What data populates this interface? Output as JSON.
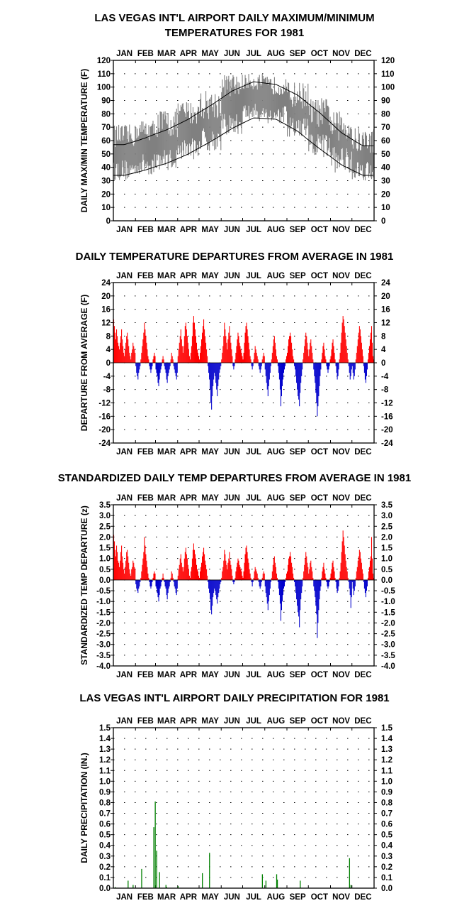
{
  "months": [
    "JAN",
    "FEB",
    "MAR",
    "APR",
    "MAY",
    "JUN",
    "JUL",
    "AUG",
    "SEP",
    "OCT",
    "NOV",
    "DEC"
  ],
  "colors": {
    "envelope": "#808080",
    "normal_line": "#000000",
    "positive": "#ff0000",
    "negative": "#0000cc",
    "precip": "#008000"
  },
  "chart_data": [
    {
      "type": "area",
      "title": [
        "LAS VEGAS INT'L AIRPORT DAILY MAXIMUM/MINIMUM",
        "TEMPERATURES FOR 1981"
      ],
      "ylabel": "DAILY MAX/MIN TEMPERATURE (F)",
      "ylim": [
        0,
        120
      ],
      "yticks": [
        0,
        10,
        20,
        30,
        40,
        50,
        60,
        70,
        80,
        90,
        100,
        110,
        120
      ],
      "grid": true,
      "monthly": [
        {
          "month": "JAN",
          "max_range": [
            55,
            72
          ],
          "min_range": [
            30,
            46
          ],
          "normal_max": 57,
          "normal_min": 34
        },
        {
          "month": "FEB",
          "max_range": [
            60,
            76
          ],
          "min_range": [
            34,
            50
          ],
          "normal_max": 62,
          "normal_min": 38
        },
        {
          "month": "MAR",
          "max_range": [
            62,
            84
          ],
          "min_range": [
            38,
            54
          ],
          "normal_max": 68,
          "normal_min": 43
        },
        {
          "month": "APR",
          "max_range": [
            72,
            90
          ],
          "min_range": [
            46,
            62
          ],
          "normal_max": 76,
          "normal_min": 50
        },
        {
          "month": "MAY",
          "max_range": [
            76,
            98
          ],
          "min_range": [
            52,
            70
          ],
          "normal_max": 86,
          "normal_min": 59
        },
        {
          "month": "JUN",
          "max_range": [
            92,
            110
          ],
          "min_range": [
            64,
            80
          ],
          "normal_max": 97,
          "normal_min": 69
        },
        {
          "month": "JUL",
          "max_range": [
            98,
            110
          ],
          "min_range": [
            74,
            88
          ],
          "normal_max": 104,
          "normal_min": 77
        },
        {
          "month": "AUG",
          "max_range": [
            94,
            108
          ],
          "min_range": [
            72,
            86
          ],
          "normal_max": 102,
          "normal_min": 76
        },
        {
          "month": "SEP",
          "max_range": [
            84,
            104
          ],
          "min_range": [
            60,
            78
          ],
          "normal_max": 94,
          "normal_min": 67
        },
        {
          "month": "OCT",
          "max_range": [
            70,
            92
          ],
          "min_range": [
            46,
            66
          ],
          "normal_max": 81,
          "normal_min": 54
        },
        {
          "month": "NOV",
          "max_range": [
            60,
            82
          ],
          "min_range": [
            36,
            56
          ],
          "normal_max": 66,
          "normal_min": 42
        },
        {
          "month": "DEC",
          "max_range": [
            50,
            70
          ],
          "min_range": [
            30,
            46
          ],
          "normal_max": 56,
          "normal_min": 34
        }
      ]
    },
    {
      "type": "bar",
      "title": [
        "DAILY TEMPERATURE DEPARTURES FROM AVERAGE IN 1981"
      ],
      "ylabel": "DEPARTURE FROM AVERAGE (F)",
      "ylim": [
        -24,
        24
      ],
      "yticks": [
        -24,
        -20,
        -16,
        -12,
        -8,
        -4,
        0,
        4,
        8,
        12,
        16,
        20,
        24
      ],
      "grid": true,
      "monthly_departures": {
        "JAN": [
          13,
          11,
          9,
          7,
          10,
          8,
          6,
          5,
          4,
          6,
          8,
          10,
          7,
          5,
          3,
          2,
          4,
          6,
          8,
          9,
          7,
          5,
          3,
          2,
          1,
          3,
          4,
          6,
          5,
          4,
          3
        ],
        "FEB": [
          -1,
          -3,
          -4,
          -5,
          -3,
          -2,
          -1,
          1,
          3,
          5,
          7,
          9,
          12,
          10,
          8,
          6,
          4,
          2,
          1,
          -1,
          -2,
          -3,
          -2,
          -1,
          1,
          2,
          3,
          2
        ],
        "MAR": [
          -2,
          -3,
          -4,
          -6,
          -7,
          -5,
          -3,
          -2,
          -1,
          1,
          2,
          1,
          -1,
          -2,
          -3,
          -5,
          -6,
          -4,
          -3,
          -2,
          -1,
          1,
          3,
          2,
          1,
          -1,
          -2,
          -3,
          -4,
          -5,
          -3
        ],
        "APR": [
          2,
          4,
          6,
          8,
          10,
          7,
          5,
          3,
          5,
          8,
          11,
          12,
          10,
          8,
          6,
          4,
          2,
          1,
          3,
          5,
          8,
          12,
          14,
          12,
          10,
          8,
          6,
          4,
          3,
          2
        ],
        "MAY": [
          1,
          3,
          5,
          7,
          9,
          11,
          13,
          10,
          8,
          6,
          4,
          2,
          -1,
          -3,
          -5,
          -8,
          -12,
          -14,
          -10,
          -7,
          -5,
          -3,
          -4,
          -6,
          -8,
          -10,
          -7,
          -5,
          -3,
          -2,
          -1
        ],
        "JUN": [
          1,
          3,
          5,
          8,
          12,
          10,
          8,
          6,
          4,
          7,
          9,
          11,
          8,
          6,
          4,
          2,
          -1,
          -2,
          -1,
          1,
          3,
          5,
          7,
          9,
          8,
          6,
          5,
          4,
          3,
          2
        ],
        "JUL": [
          1,
          3,
          6,
          9,
          11,
          12,
          10,
          8,
          6,
          4,
          2,
          1,
          -1,
          -2,
          -1,
          1,
          3,
          5,
          4,
          3,
          2,
          1,
          -1,
          -2,
          -3,
          -2,
          -1,
          1,
          2,
          3,
          2
        ],
        "AUG": [
          -2,
          -4,
          -6,
          -8,
          -10,
          -7,
          -5,
          -3,
          -1,
          1,
          3,
          5,
          7,
          8,
          6,
          4,
          2,
          1,
          -1,
          -3,
          -5,
          -8,
          -13,
          -10,
          -7,
          -5,
          -3,
          -2,
          -1,
          1,
          2
        ],
        "SEP": [
          3,
          5,
          7,
          8,
          9,
          8,
          6,
          4,
          2,
          1,
          -1,
          -2,
          -4,
          -6,
          -8,
          -10,
          -11,
          -13,
          -9,
          -6,
          -4,
          -2,
          1,
          3,
          5,
          7,
          9,
          8,
          6,
          4
        ],
        "OCT": [
          2,
          4,
          6,
          7,
          5,
          3,
          1,
          -2,
          -4,
          -6,
          -9,
          -12,
          -16,
          -13,
          -10,
          -7,
          -4,
          -2,
          1,
          3,
          5,
          6,
          4,
          2,
          1,
          -1,
          -2,
          -3,
          -2,
          -1,
          1
        ],
        "NOV": [
          2,
          4,
          6,
          7,
          5,
          3,
          1,
          -1,
          -3,
          -5,
          -4,
          -2,
          1,
          3,
          6,
          9,
          12,
          14,
          13,
          11,
          9,
          7,
          5,
          3,
          1,
          -1,
          -3,
          -5,
          -4,
          -2
        ],
        "DEC": [
          -1,
          -3,
          -5,
          -4,
          -2,
          1,
          3,
          5,
          7,
          9,
          11,
          10,
          8,
          6,
          4,
          2,
          -1,
          -3,
          -5,
          -6,
          -4,
          -2,
          1,
          3,
          5,
          7,
          9,
          11,
          6,
          2,
          1
        ]
      }
    },
    {
      "type": "bar",
      "title": [
        "STANDARDIZED DAILY TEMP DEPARTURES FROM AVERAGE IN 1981"
      ],
      "ylabel": "STANDARDIZED TEMP DEPARTURE (z)",
      "ylim": [
        -4.0,
        3.5
      ],
      "yticks": [
        "-4.0",
        "-3.5",
        "-3.0",
        "-2.5",
        "-2.0",
        "-1.5",
        "-1.0",
        "-0.5",
        "0.0",
        "0.5",
        "1.0",
        "1.5",
        "2.0",
        "2.5",
        "3.0",
        "3.5"
      ],
      "grid": true,
      "monthly_departures": {
        "JAN": [
          2.1,
          1.8,
          1.4,
          1.1,
          1.6,
          1.3,
          0.9,
          0.8,
          0.6,
          0.9,
          1.3,
          1.6,
          1.1,
          0.8,
          0.5,
          0.3,
          0.6,
          0.9,
          1.3,
          1.4,
          1.1,
          0.8,
          0.5,
          0.3,
          0.2,
          0.5,
          0.6,
          0.9,
          0.8,
          0.6,
          0.5
        ],
        "FEB": [
          -0.2,
          -0.4,
          -0.5,
          -0.6,
          -0.4,
          -0.3,
          -0.1,
          0.1,
          0.4,
          0.7,
          1.0,
          1.3,
          2.0,
          1.6,
          1.2,
          0.9,
          0.6,
          0.3,
          0.1,
          -0.1,
          -0.3,
          -0.4,
          -0.3,
          -0.1,
          0.1,
          0.3,
          0.4,
          0.3
        ],
        "MAR": [
          -0.3,
          -0.4,
          -0.6,
          -0.8,
          -1.0,
          -0.7,
          -0.4,
          -0.3,
          -0.1,
          0.1,
          0.3,
          0.1,
          -0.1,
          -0.3,
          -0.4,
          -0.7,
          -0.9,
          -0.6,
          -0.4,
          -0.3,
          -0.1,
          0.1,
          0.4,
          0.3,
          0.1,
          -0.1,
          -0.3,
          -0.4,
          -0.6,
          -0.7,
          -0.4
        ],
        "APR": [
          0.2,
          0.5,
          0.7,
          1.0,
          1.2,
          0.8,
          0.6,
          0.4,
          0.6,
          1.0,
          1.3,
          1.5,
          1.2,
          1.0,
          0.7,
          0.5,
          0.2,
          0.1,
          0.4,
          0.6,
          1.0,
          1.4,
          1.7,
          1.4,
          1.2,
          1.0,
          0.7,
          0.5,
          0.4,
          0.2
        ],
        "MAY": [
          0.1,
          0.4,
          0.6,
          0.8,
          1.1,
          1.3,
          1.5,
          1.2,
          0.9,
          0.7,
          0.5,
          0.2,
          -0.1,
          -0.4,
          -0.6,
          -0.9,
          -1.4,
          -1.6,
          -1.2,
          -0.8,
          -0.6,
          -0.4,
          -0.5,
          -0.7,
          -0.9,
          -1.1,
          -0.8,
          -0.6,
          -0.4,
          -0.2,
          -0.1
        ],
        "JUN": [
          0.1,
          0.4,
          0.6,
          0.9,
          1.4,
          1.2,
          0.9,
          0.7,
          0.5,
          0.8,
          1.0,
          1.3,
          0.9,
          0.7,
          0.5,
          0.2,
          -0.1,
          -0.2,
          -0.1,
          0.1,
          0.4,
          0.6,
          0.8,
          1.0,
          0.9,
          0.7,
          0.6,
          0.5,
          0.4,
          0.2
        ],
        "JUL": [
          0.1,
          0.4,
          0.8,
          1.2,
          1.5,
          1.6,
          1.3,
          1.0,
          0.8,
          0.5,
          0.3,
          0.1,
          -0.1,
          -0.3,
          -0.1,
          0.1,
          0.4,
          0.6,
          0.5,
          0.4,
          0.3,
          0.1,
          -0.1,
          -0.3,
          -0.4,
          -0.3,
          -0.1,
          0.1,
          0.3,
          0.4,
          0.3
        ],
        "AUG": [
          -0.3,
          -0.6,
          -0.8,
          -1.1,
          -1.4,
          -1.0,
          -0.7,
          -0.4,
          -0.1,
          0.1,
          0.4,
          0.7,
          1.0,
          1.1,
          0.8,
          0.6,
          0.3,
          0.1,
          -0.1,
          -0.4,
          -0.7,
          -1.1,
          -1.9,
          -1.4,
          -1.0,
          -0.7,
          -0.4,
          -0.3,
          -0.1,
          0.1,
          0.3
        ],
        "SEP": [
          0.4,
          0.7,
          1.0,
          1.1,
          1.3,
          1.1,
          0.8,
          0.6,
          0.3,
          0.1,
          -0.1,
          -0.3,
          -0.6,
          -0.9,
          -1.2,
          -1.5,
          -1.7,
          -2.2,
          -1.4,
          -0.9,
          -0.6,
          -0.3,
          0.1,
          0.4,
          0.7,
          1.0,
          1.3,
          1.1,
          0.8,
          0.6
        ],
        "OCT": [
          0.3,
          0.5,
          0.8,
          0.9,
          0.6,
          0.4,
          0.1,
          -0.3,
          -0.5,
          -0.8,
          -1.2,
          -1.6,
          -2.7,
          -2.0,
          -1.4,
          -0.9,
          -0.5,
          -0.3,
          0.1,
          0.4,
          0.6,
          0.8,
          0.5,
          0.3,
          0.1,
          -0.1,
          -0.3,
          -0.4,
          -0.3,
          -0.1,
          0.1
        ],
        "NOV": [
          0.3,
          0.5,
          0.8,
          0.9,
          0.6,
          0.4,
          0.1,
          -0.1,
          -0.4,
          -0.6,
          -0.5,
          -0.3,
          0.1,
          0.4,
          0.8,
          1.3,
          1.8,
          2.3,
          2.0,
          1.6,
          1.2,
          0.9,
          0.6,
          0.4,
          0.1,
          -0.1,
          -0.4,
          -0.7,
          -1.3,
          -0.8
        ],
        "DEC": [
          -0.1,
          -0.4,
          -0.7,
          -0.5,
          -0.3,
          0.1,
          0.4,
          0.6,
          0.9,
          1.1,
          1.4,
          1.3,
          1.0,
          0.8,
          0.5,
          0.3,
          -0.1,
          -0.4,
          -0.6,
          -0.8,
          -0.5,
          -0.3,
          0.1,
          0.4,
          0.6,
          0.9,
          1.1,
          2.0,
          1.0,
          0.3,
          0.1
        ]
      }
    },
    {
      "type": "bar",
      "title": [
        "LAS VEGAS INT'L AIRPORT DAILY PRECIPITATION FOR 1981"
      ],
      "ylabel": "DAILY PRECIPITATION (IN.)",
      "ylim": [
        0.0,
        1.5
      ],
      "yticks": [
        "0.0",
        "0.1",
        "0.2",
        "0.3",
        "0.4",
        "0.5",
        "0.6",
        "0.7",
        "0.8",
        "0.9",
        "1.0",
        "1.1",
        "1.2",
        "1.3",
        "1.4",
        "1.5"
      ],
      "grid": true,
      "events": [
        {
          "date": "JAN 3",
          "value": 0.01
        },
        {
          "date": "JAN 21",
          "value": 0.07
        },
        {
          "date": "JAN 28",
          "value": 0.03
        },
        {
          "date": "FEB 9",
          "value": 0.18
        },
        {
          "date": "FEB 26",
          "value": 0.57
        },
        {
          "date": "FEB 28",
          "value": 0.81
        },
        {
          "date": "MAR 2",
          "value": 0.35
        },
        {
          "date": "MAR 6",
          "value": 0.15
        },
        {
          "date": "MAR 15",
          "value": 0.03
        },
        {
          "date": "MAR 16",
          "value": 0.01
        },
        {
          "date": "APR 1",
          "value": 0.02
        },
        {
          "date": "MAY 5",
          "value": 0.14
        },
        {
          "date": "MAY 15",
          "value": 0.33
        },
        {
          "date": "JUL 28",
          "value": 0.13
        },
        {
          "date": "AUG 2",
          "value": 0.07
        },
        {
          "date": "AUG 17",
          "value": 0.13
        },
        {
          "date": "AUG 18",
          "value": 0.08
        },
        {
          "date": "SEP 19",
          "value": 0.07
        },
        {
          "date": "NOV 27",
          "value": 0.28
        },
        {
          "date": "NOV 29",
          "value": 0.03
        }
      ]
    }
  ]
}
